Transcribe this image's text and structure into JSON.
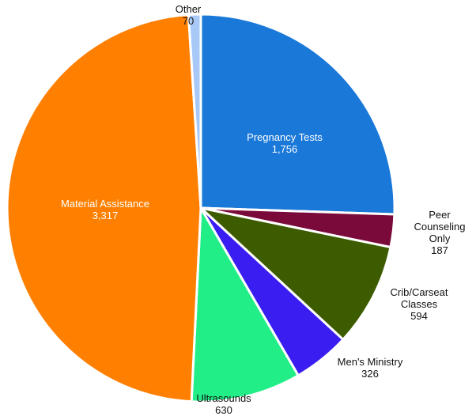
{
  "chart_data": {
    "type": "pie",
    "categories": [
      "Pregnancy Tests",
      "Peer Counseling Only",
      "Crib/Carseat Classes",
      "Men's Ministry",
      "Ultrasounds",
      "Material Assistance",
      "Other"
    ],
    "values": [
      1756,
      187,
      594,
      326,
      630,
      3317,
      70
    ],
    "value_labels": [
      "1,756",
      "187",
      "594",
      "326",
      "630",
      "3,317",
      "70"
    ],
    "colors": [
      "#1a78d8",
      "#7a0a3a",
      "#3d5c00",
      "#3a1df0",
      "#22ee88",
      "#ff7f00",
      "#a8c8f8"
    ]
  }
}
